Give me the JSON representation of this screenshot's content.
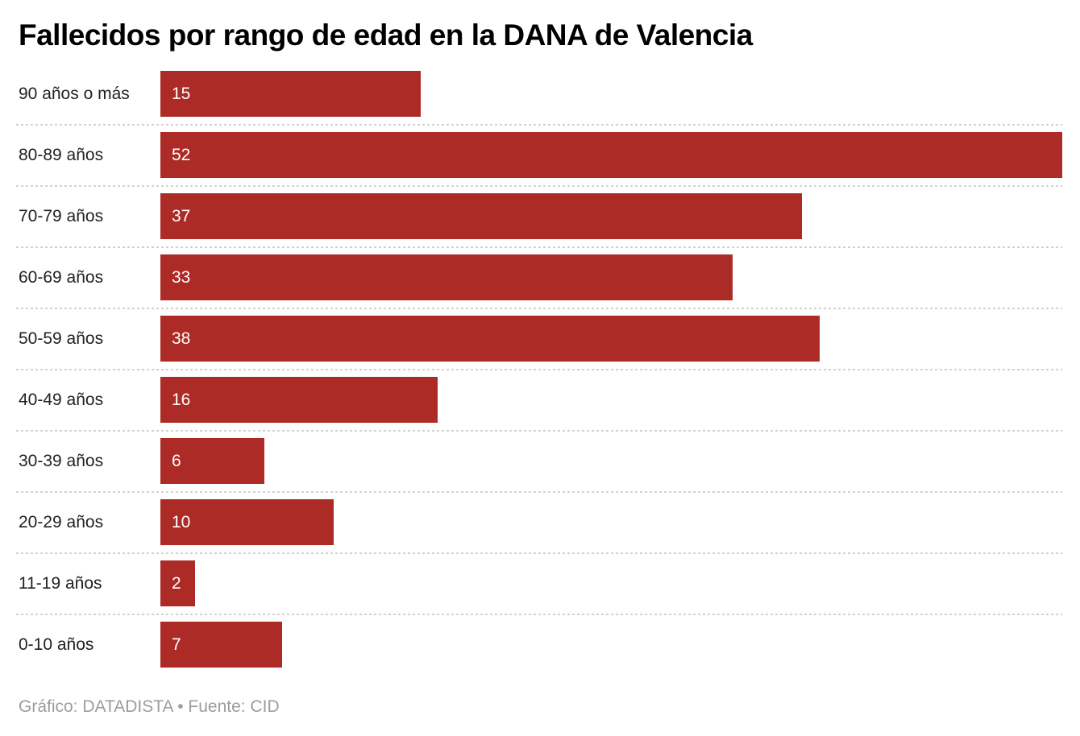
{
  "title": "Fallecidos por rango de edad en la DANA de Valencia",
  "footer": "Gráfico: DATADISTA • Fuente: CID",
  "colors": {
    "bar": "#AD2B26",
    "title_text": "#000000",
    "category_text": "#212121",
    "value_text": "#ffffff",
    "separator": "#d2d2d2",
    "footer_text": "#9c9c9c",
    "background": "#ffffff"
  },
  "chart_data": {
    "type": "bar",
    "orientation": "horizontal",
    "title": "Fallecidos por rango de edad en la DANA de Valencia",
    "categories": [
      "90 años o más",
      "80-89 años",
      "70-79 años",
      "60-69 años",
      "50-59 años",
      "40-49 años",
      "30-39 años",
      "20-29 años",
      "11-19 años",
      "0-10 años"
    ],
    "values": [
      15,
      52,
      37,
      33,
      38,
      16,
      6,
      10,
      2,
      7
    ],
    "xlabel": "",
    "ylabel": "",
    "xlim": [
      0,
      52
    ],
    "grid": false,
    "legend": false,
    "value_labels": "inside-left",
    "source": "Gráfico: DATADISTA • Fuente: CID"
  }
}
